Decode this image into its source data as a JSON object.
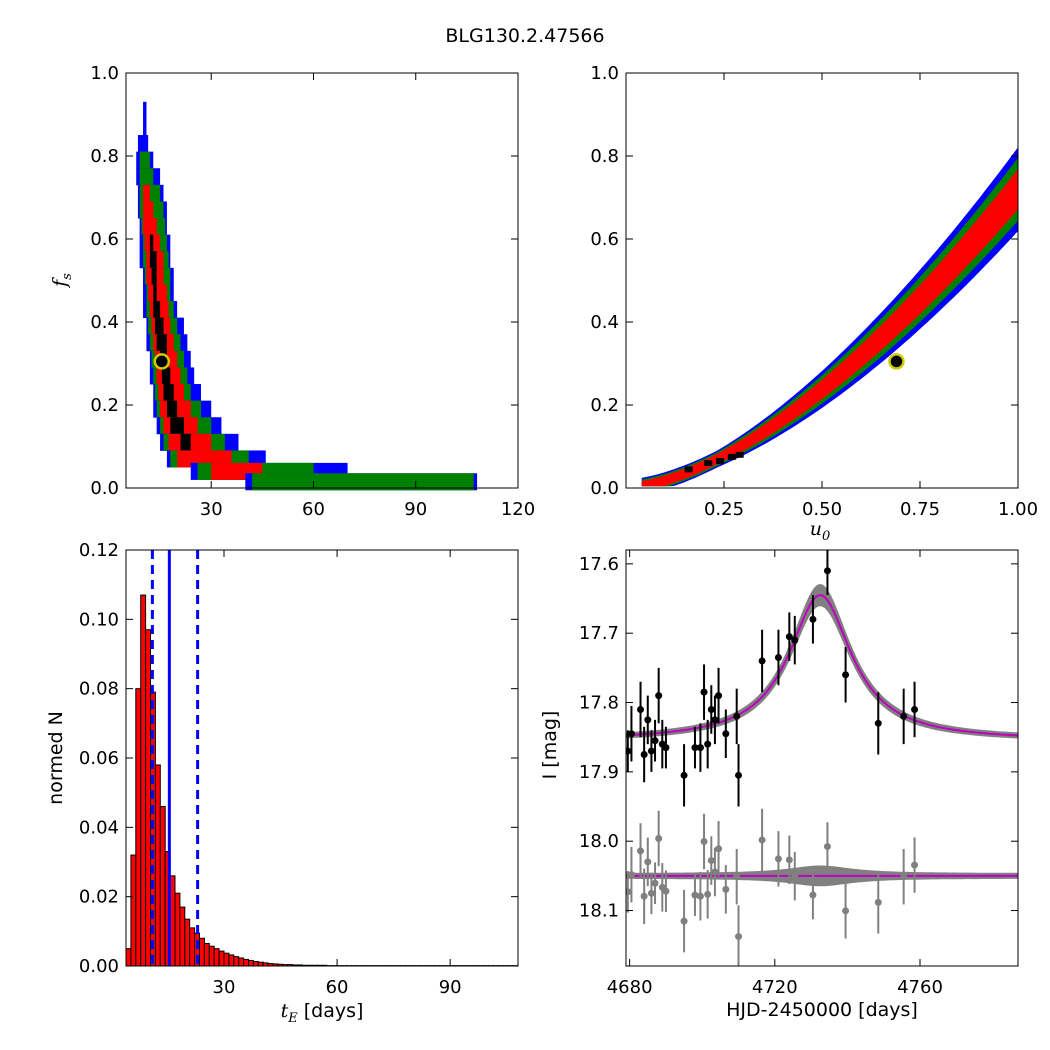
{
  "figure_title": "BLG130.2.47566",
  "chart_data": [
    {
      "id": "fs_vs_tE",
      "type": "heatmap",
      "xlabel": "",
      "ylabel": "f",
      "ylabel_sub": "s",
      "xlim": [
        5,
        120
      ],
      "ylim": [
        0,
        1
      ],
      "xticks": [
        30,
        60,
        90,
        120
      ],
      "xtick_labels": [
        "30",
        "60",
        "90",
        "120"
      ],
      "yticks": [
        0,
        0.2,
        0.4,
        0.6,
        0.8,
        1.0
      ],
      "ytick_labels": [
        "0.0",
        "0.2",
        "0.4",
        "0.6",
        "0.8",
        "1.0"
      ],
      "levels": [
        "blue",
        "green",
        "red",
        "black"
      ],
      "level_colors": [
        "#0000ff",
        "#008000",
        "#ff0000",
        "#000000"
      ],
      "bands": [
        {
          "y": 0.91,
          "segs": [
            [
              10,
              11,
              0
            ]
          ]
        },
        {
          "y": 0.87,
          "segs": [
            [
              10,
              11,
              0
            ]
          ]
        },
        {
          "y": 0.83,
          "segs": [
            [
              8.5,
              11.5,
              0
            ]
          ]
        },
        {
          "y": 0.79,
          "segs": [
            [
              8,
              13,
              0
            ],
            [
              9,
              12,
              1
            ]
          ]
        },
        {
          "y": 0.75,
          "segs": [
            [
              8,
              15,
              0
            ],
            [
              9,
              13,
              1
            ]
          ]
        },
        {
          "y": 0.71,
          "segs": [
            [
              8.5,
              16,
              0
            ],
            [
              9,
              15,
              1
            ],
            [
              10,
              12,
              2
            ]
          ]
        },
        {
          "y": 0.67,
          "segs": [
            [
              8.5,
              17,
              0
            ],
            [
              9,
              16,
              1
            ],
            [
              10,
              13,
              2
            ]
          ]
        },
        {
          "y": 0.63,
          "segs": [
            [
              9,
              17,
              0
            ],
            [
              9.5,
              16.5,
              1
            ],
            [
              10,
              14,
              2
            ]
          ]
        },
        {
          "y": 0.59,
          "segs": [
            [
              9,
              18,
              0
            ],
            [
              10,
              17,
              1
            ],
            [
              10.5,
              15,
              2
            ],
            [
              12,
              13,
              3
            ]
          ]
        },
        {
          "y": 0.55,
          "segs": [
            [
              9,
              18,
              0
            ],
            [
              10,
              17.5,
              1
            ],
            [
              11,
              16,
              2
            ],
            [
              12,
              14,
              3
            ]
          ]
        },
        {
          "y": 0.51,
          "segs": [
            [
              10,
              19,
              0
            ],
            [
              10.5,
              18,
              1
            ],
            [
              11,
              16,
              2
            ],
            [
              12.5,
              14,
              3
            ]
          ]
        },
        {
          "y": 0.47,
          "segs": [
            [
              10,
              19,
              0
            ],
            [
              11,
              18,
              1
            ],
            [
              11.5,
              17,
              2
            ],
            [
              13,
              14,
              3
            ]
          ]
        },
        {
          "y": 0.43,
          "segs": [
            [
              10,
              20,
              0
            ],
            [
              11,
              19,
              1
            ],
            [
              12,
              17.5,
              2
            ],
            [
              13,
              15,
              3
            ]
          ]
        },
        {
          "y": 0.39,
          "segs": [
            [
              11,
              22,
              0
            ],
            [
              11.5,
              20,
              1
            ],
            [
              12.5,
              18,
              2
            ],
            [
              13.5,
              16,
              3
            ]
          ]
        },
        {
          "y": 0.35,
          "segs": [
            [
              11,
              23,
              0
            ],
            [
              12,
              21,
              1
            ],
            [
              13,
              19,
              2
            ],
            [
              14,
              17,
              3
            ]
          ]
        },
        {
          "y": 0.31,
          "segs": [
            [
              12,
              24,
              0
            ],
            [
              12.5,
              22,
              1
            ],
            [
              13.5,
              20,
              2
            ],
            [
              15,
              17,
              3
            ]
          ]
        },
        {
          "y": 0.27,
          "segs": [
            [
              12,
              25,
              0
            ],
            [
              13,
              23,
              1
            ],
            [
              14,
              21,
              2
            ],
            [
              15.5,
              18,
              3
            ]
          ]
        },
        {
          "y": 0.23,
          "segs": [
            [
              13,
              27,
              0
            ],
            [
              13.5,
              24,
              1
            ],
            [
              14.5,
              22,
              2
            ],
            [
              16,
              19,
              3
            ]
          ]
        },
        {
          "y": 0.19,
          "segs": [
            [
              13,
              30,
              0
            ],
            [
              14,
              27,
              1
            ],
            [
              15,
              24,
              2
            ],
            [
              17,
              20,
              3
            ]
          ]
        },
        {
          "y": 0.15,
          "segs": [
            [
              14,
              33,
              0
            ],
            [
              15,
              30,
              1
            ],
            [
              16,
              26,
              2
            ],
            [
              18,
              22,
              3
            ]
          ]
        },
        {
          "y": 0.11,
          "segs": [
            [
              15,
              38,
              0
            ],
            [
              16,
              34,
              1
            ],
            [
              17.5,
              30,
              2
            ],
            [
              21,
              24,
              3
            ]
          ]
        },
        {
          "y": 0.07,
          "segs": [
            [
              17,
              46,
              0
            ],
            [
              18,
              41,
              1
            ],
            [
              20,
              36,
              2
            ]
          ]
        },
        {
          "y": 0.04,
          "segs": [
            [
              24,
              70,
              0
            ],
            [
              26,
              60,
              1
            ],
            [
              30,
              45,
              2
            ]
          ]
        },
        {
          "y": 0.015,
          "segs": [
            [
              40,
              108,
              0
            ],
            [
              42,
              107,
              1
            ]
          ]
        }
      ],
      "best_fit": {
        "x": 15.5,
        "y": 0.305
      }
    },
    {
      "id": "fs_vs_u0",
      "type": "heatmap",
      "xlabel": "u",
      "xlabel_sub": "0",
      "ylabel": "",
      "xlim": [
        0,
        1.0
      ],
      "ylim": [
        0,
        1
      ],
      "xticks": [
        0.25,
        0.5,
        0.75,
        1.0
      ],
      "xtick_labels": [
        "0.25",
        "0.50",
        "0.75",
        "1.00"
      ],
      "yticks": [
        0,
        0.2,
        0.4,
        0.6,
        0.8,
        1.0
      ],
      "ytick_labels": [
        "0.0",
        "0.2",
        "0.4",
        "0.6",
        "0.8",
        "1.0"
      ],
      "level_colors": [
        "#0000ff",
        "#008000",
        "#ff0000",
        "#000000"
      ],
      "band": {
        "k": 0.72,
        "p": 1.6,
        "widths": [
          0.19,
          0.14,
          0.085
        ],
        "x_start": 0.04,
        "x_end": 1.0
      },
      "black_pixels": [
        [
          0.16,
          0.045
        ],
        [
          0.21,
          0.06
        ],
        [
          0.24,
          0.065
        ],
        [
          0.27,
          0.075
        ],
        [
          0.29,
          0.08
        ]
      ],
      "best_fit": {
        "x": 0.69,
        "y": 0.305
      }
    },
    {
      "id": "tE_histogram",
      "type": "bar",
      "xlabel": "t",
      "xlabel_sub": "E",
      "xlabel_suffix": " [days]",
      "ylabel": "normed N",
      "xlim": [
        4,
        108
      ],
      "ylim": [
        0,
        0.12
      ],
      "xticks": [
        30,
        60,
        90
      ],
      "xtick_labels": [
        "30",
        "60",
        "90"
      ],
      "yticks": [
        0,
        0.02,
        0.04,
        0.06,
        0.08,
        0.1,
        0.12
      ],
      "ytick_labels": [
        "0.00",
        "0.02",
        "0.04",
        "0.06",
        "0.08",
        "0.10",
        "0.12"
      ],
      "bin_start": 4,
      "bin_width": 1.3,
      "values": [
        0.005,
        0.032,
        0.08,
        0.107,
        0.097,
        0.079,
        0.058,
        0.046,
        0.033,
        0.026,
        0.021,
        0.017,
        0.0135,
        0.011,
        0.0095,
        0.008,
        0.0065,
        0.0057,
        0.005,
        0.0043,
        0.0037,
        0.0032,
        0.0027,
        0.0023,
        0.0019,
        0.0016,
        0.0013,
        0.0011,
        0.0009,
        0.0007,
        0.0006,
        0.0005,
        0.0004,
        0.0004,
        0.0003,
        0.0003,
        0.0002,
        0.0002,
        0.0002,
        0.0002,
        0.0002,
        0.0001,
        0.0001,
        0.0001,
        0.0001,
        0.0001,
        0.0001,
        0.0001,
        0.0001,
        0.0001,
        0.0001,
        0.0001,
        0.0001,
        0.0001,
        0.0001,
        0.0001,
        0.0001,
        0.0001,
        0.0001,
        0.0001,
        0.0001,
        0.0001,
        0.0001,
        0.0001,
        0.0001,
        0.0001,
        0.0001,
        0.0001,
        0.0001,
        0.0001,
        0.0001,
        0.0001,
        0.0001,
        0.0001,
        0.0001,
        0.0001,
        0.0001,
        0.0001,
        0.0001,
        0.0001
      ],
      "median": 15.5,
      "lower": 11.0,
      "upper": 23.0,
      "bar_color": "#ff0000",
      "line_color": "#0000ff"
    },
    {
      "id": "lightcurve",
      "type": "scatter",
      "xlabel": "HJD-2450000 [days]",
      "ylabel": "I [mag]",
      "xlim": [
        4679,
        4787
      ],
      "ylim": [
        18.18,
        17.58
      ],
      "xticks": [
        4680,
        4720,
        4760
      ],
      "xtick_labels": [
        "4680",
        "4720",
        "4760"
      ],
      "yticks": [
        17.6,
        17.7,
        17.8,
        17.9,
        18.0,
        18.1
      ],
      "ytick_labels": [
        "17.6",
        "17.7",
        "17.8",
        "17.9",
        "18.0",
        "18.1"
      ],
      "model": {
        "t0": 4732.5,
        "baseline": 17.855,
        "amplitude": 0.21,
        "width": 10.5,
        "color": "#bf00bf",
        "band_color": "#808080"
      },
      "residual_offset": 18.05,
      "points": [
        {
          "t": 4679.5,
          "mag": 17.87,
          "err": 0.03
        },
        {
          "t": 4680.5,
          "mag": 17.845,
          "err": 0.04
        },
        {
          "t": 4683.0,
          "mag": 17.81,
          "err": 0.04
        },
        {
          "t": 4684.0,
          "mag": 17.875,
          "err": 0.04
        },
        {
          "t": 4685.0,
          "mag": 17.825,
          "err": 0.035
        },
        {
          "t": 4686.0,
          "mag": 17.87,
          "err": 0.03
        },
        {
          "t": 4687.0,
          "mag": 17.855,
          "err": 0.03
        },
        {
          "t": 4688.0,
          "mag": 17.79,
          "err": 0.04
        },
        {
          "t": 4689.0,
          "mag": 17.86,
          "err": 0.035
        },
        {
          "t": 4690.0,
          "mag": 17.865,
          "err": 0.03
        },
        {
          "t": 4695.0,
          "mag": 17.905,
          "err": 0.045
        },
        {
          "t": 4698.0,
          "mag": 17.865,
          "err": 0.03
        },
        {
          "t": 4699.5,
          "mag": 17.865,
          "err": 0.035
        },
        {
          "t": 4700.5,
          "mag": 17.785,
          "err": 0.04
        },
        {
          "t": 4701.5,
          "mag": 17.86,
          "err": 0.035
        },
        {
          "t": 4702.5,
          "mag": 17.81,
          "err": 0.035
        },
        {
          "t": 4703.5,
          "mag": 17.825,
          "err": 0.035
        },
        {
          "t": 4704.5,
          "mag": 17.79,
          "err": 0.04
        },
        {
          "t": 4706.5,
          "mag": 17.845,
          "err": 0.035
        },
        {
          "t": 4709.5,
          "mag": 17.82,
          "err": 0.04
        },
        {
          "t": 4710.0,
          "mag": 17.905,
          "err": 0.045
        },
        {
          "t": 4716.5,
          "mag": 17.74,
          "err": 0.045
        },
        {
          "t": 4721.0,
          "mag": 17.735,
          "err": 0.04
        },
        {
          "t": 4724.0,
          "mag": 17.705,
          "err": 0.035
        },
        {
          "t": 4725.5,
          "mag": 17.71,
          "err": 0.035
        },
        {
          "t": 4730.5,
          "mag": 17.68,
          "err": 0.035
        },
        {
          "t": 4734.5,
          "mag": 17.61,
          "err": 0.035
        },
        {
          "t": 4739.5,
          "mag": 17.76,
          "err": 0.04
        },
        {
          "t": 4748.5,
          "mag": 17.83,
          "err": 0.045
        },
        {
          "t": 4755.5,
          "mag": 17.82,
          "err": 0.04
        },
        {
          "t": 4758.5,
          "mag": 17.81,
          "err": 0.04
        }
      ]
    }
  ]
}
